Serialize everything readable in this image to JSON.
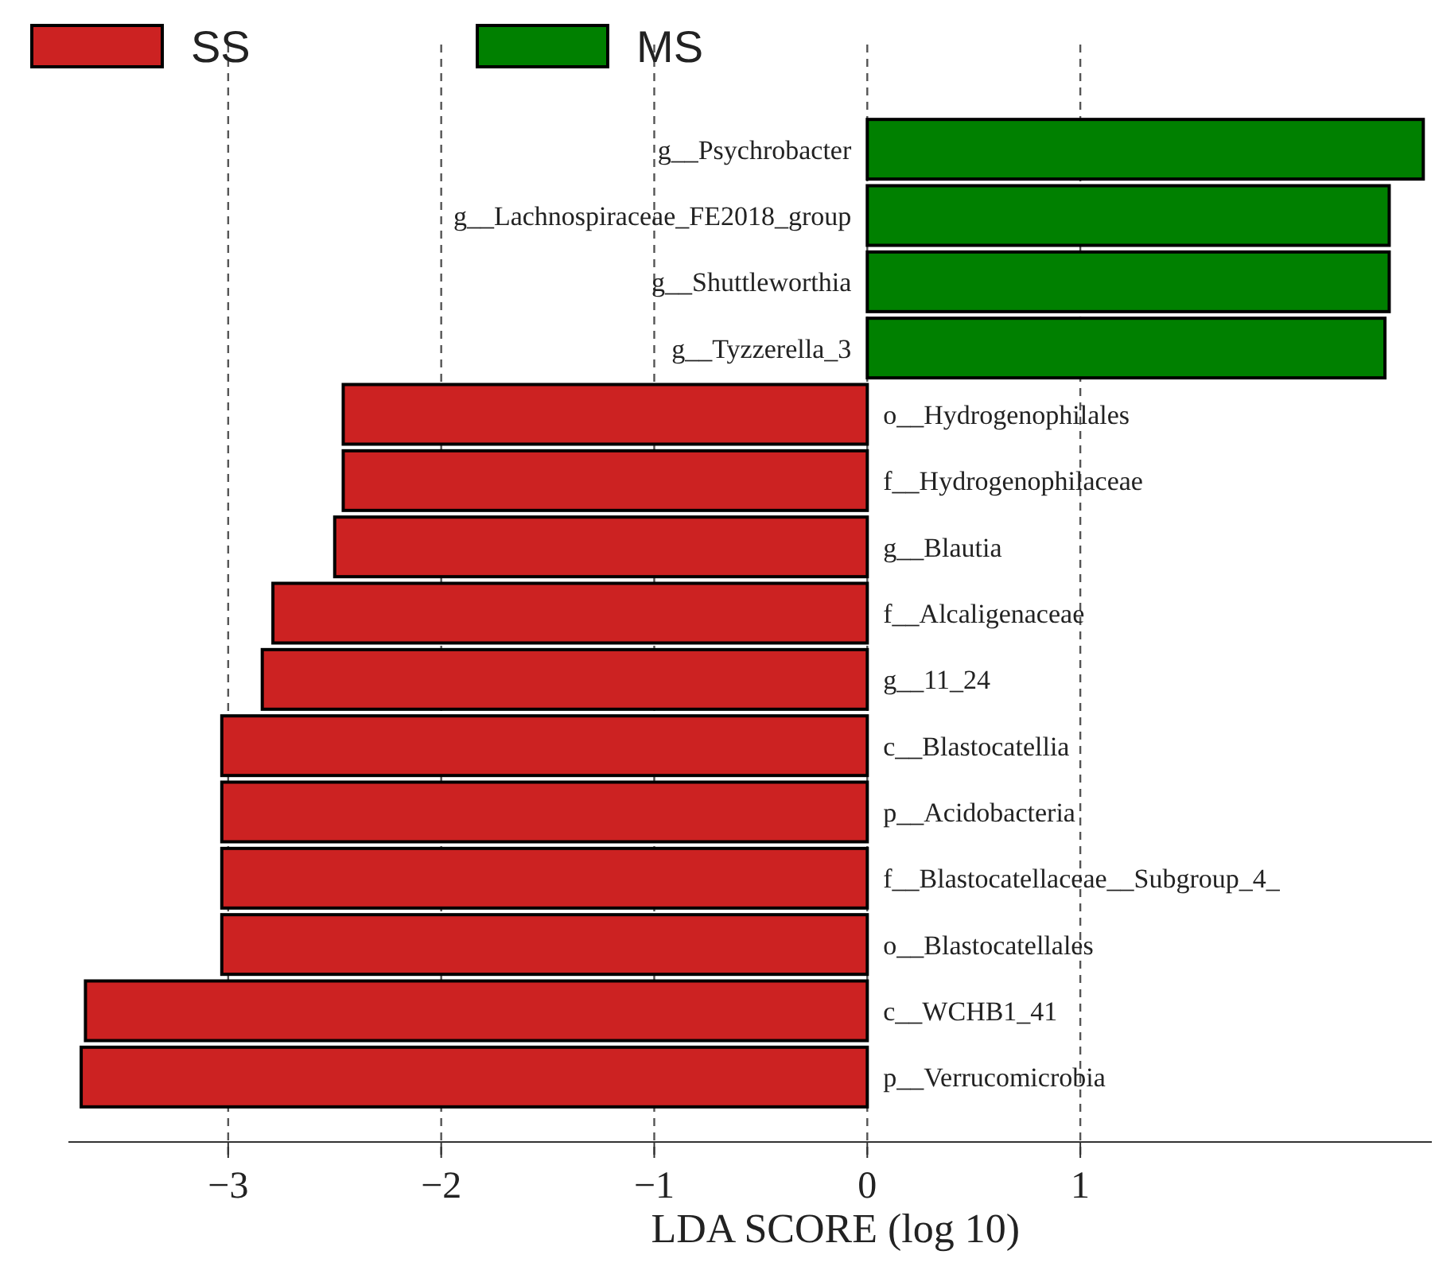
{
  "chart_data": {
    "type": "bar",
    "orientation": "horizontal",
    "xlabel": "LDA SCORE (log 10)",
    "categories": [
      "g__Psychrobacter",
      "g__Lachnospiraceae_FE2018_group",
      "g__Shuttleworthia",
      "g__Tyzzerella_3",
      "o__Hydrogenophilales",
      "f__Hydrogenophilaceae",
      "g__Blautia",
      "f__Alcaligenaceae",
      "g__11_24",
      "c__Blastocatellia",
      "p__Acidobacteria",
      "f__Blastocatellaceae__Subgroup_4_",
      "o__Blastocatellales",
      "c__WCHB1_41",
      "p__Verrucomicrobia"
    ],
    "series": [
      {
        "name": "SS",
        "color": "#cc2222",
        "values": [
          null,
          null,
          null,
          null,
          -2.46,
          -2.46,
          -2.5,
          -2.79,
          -2.84,
          -3.03,
          -3.03,
          -3.03,
          -3.03,
          -3.67,
          -3.69
        ]
      },
      {
        "name": "MS",
        "color": "#008000",
        "values": [
          2.61,
          2.45,
          2.45,
          2.43,
          null,
          null,
          null,
          null,
          null,
          null,
          null,
          null,
          null,
          null,
          null
        ]
      }
    ],
    "xlim": [
      -3.75,
      2.65
    ],
    "xticks": [
      {
        "value": -3,
        "label": "−3"
      },
      {
        "value": -2,
        "label": "−2"
      },
      {
        "value": -1,
        "label": "−1"
      },
      0,
      1
    ],
    "grid": "x",
    "legend": "top left"
  }
}
